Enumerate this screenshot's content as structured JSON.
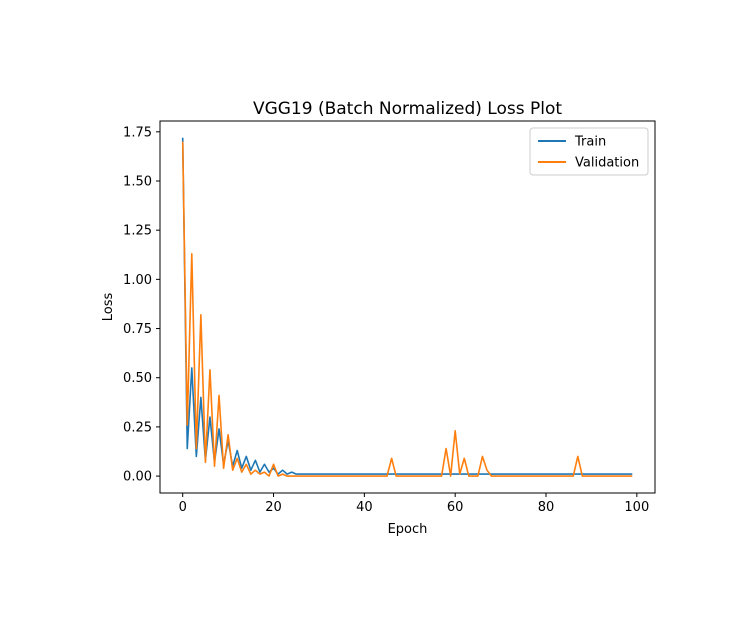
{
  "chart_data": {
    "type": "line",
    "title": "VGG19 (Batch Normalized) Loss Plot",
    "xlabel": "Epoch",
    "ylabel": "Loss",
    "xlim": [
      -5,
      104
    ],
    "ylim": [
      -0.086,
      1.805
    ],
    "xticks": [
      0,
      20,
      40,
      60,
      80,
      100
    ],
    "xtick_labels": [
      "0",
      "20",
      "40",
      "60",
      "80",
      "100"
    ],
    "yticks": [
      0,
      0.25,
      0.5,
      0.75,
      1.0,
      1.25,
      1.5,
      1.75
    ],
    "ytick_labels": [
      "0.00",
      "0.25",
      "0.50",
      "0.75",
      "1.00",
      "1.25",
      "1.50",
      "1.75"
    ],
    "grid": false,
    "legend_position": "top-right",
    "series": [
      {
        "name": "Train",
        "color": "#1f77b4",
        "x": [
          0,
          1,
          2,
          3,
          4,
          5,
          6,
          7,
          8,
          9,
          10,
          11,
          12,
          13,
          14,
          15,
          16,
          17,
          18,
          19,
          20,
          21,
          22,
          23,
          24,
          25,
          26,
          27,
          28,
          29,
          30,
          31,
          32,
          33,
          34,
          35,
          36,
          37,
          38,
          39,
          40,
          41,
          42,
          43,
          44,
          45,
          46,
          47,
          48,
          49,
          50,
          51,
          52,
          53,
          54,
          55,
          56,
          57,
          58,
          59,
          60,
          61,
          62,
          63,
          64,
          65,
          66,
          67,
          68,
          69,
          70,
          71,
          72,
          73,
          74,
          75,
          76,
          77,
          78,
          79,
          80,
          81,
          82,
          83,
          84,
          85,
          86,
          87,
          88,
          89,
          90,
          91,
          92,
          93,
          94,
          95,
          96,
          97,
          98,
          99
        ],
        "values": [
          1.72,
          0.14,
          0.55,
          0.1,
          0.4,
          0.08,
          0.3,
          0.07,
          0.24,
          0.06,
          0.18,
          0.05,
          0.13,
          0.04,
          0.1,
          0.03,
          0.08,
          0.02,
          0.06,
          0.02,
          0.04,
          0.01,
          0.03,
          0.01,
          0.02,
          0.01,
          0.01,
          0.01,
          0.01,
          0.01,
          0.01,
          0.01,
          0.01,
          0.01,
          0.01,
          0.01,
          0.01,
          0.01,
          0.01,
          0.01,
          0.01,
          0.01,
          0.01,
          0.01,
          0.01,
          0.01,
          0.01,
          0.01,
          0.01,
          0.01,
          0.01,
          0.01,
          0.01,
          0.01,
          0.01,
          0.01,
          0.01,
          0.01,
          0.01,
          0.01,
          0.01,
          0.01,
          0.01,
          0.01,
          0.01,
          0.01,
          0.01,
          0.01,
          0.01,
          0.01,
          0.01,
          0.01,
          0.01,
          0.01,
          0.01,
          0.01,
          0.01,
          0.01,
          0.01,
          0.01,
          0.01,
          0.01,
          0.01,
          0.01,
          0.01,
          0.01,
          0.01,
          0.01,
          0.01,
          0.01,
          0.01,
          0.01,
          0.01,
          0.01,
          0.01,
          0.01,
          0.01,
          0.01,
          0.01,
          0.01
        ]
      },
      {
        "name": "Validation",
        "color": "#ff7f0e",
        "x": [
          0,
          1,
          2,
          3,
          4,
          5,
          6,
          7,
          8,
          9,
          10,
          11,
          12,
          13,
          14,
          15,
          16,
          17,
          18,
          19,
          20,
          21,
          22,
          23,
          24,
          25,
          26,
          27,
          28,
          29,
          30,
          31,
          32,
          33,
          34,
          35,
          36,
          37,
          38,
          39,
          40,
          41,
          42,
          43,
          44,
          45,
          46,
          47,
          48,
          49,
          50,
          51,
          52,
          53,
          54,
          55,
          56,
          57,
          58,
          59,
          60,
          61,
          62,
          63,
          64,
          65,
          66,
          67,
          68,
          69,
          70,
          71,
          72,
          73,
          74,
          75,
          76,
          77,
          78,
          79,
          80,
          81,
          82,
          83,
          84,
          85,
          86,
          87,
          88,
          89,
          90,
          91,
          92,
          93,
          94,
          95,
          96,
          97,
          98,
          99
        ],
        "values": [
          1.7,
          0.26,
          1.13,
          0.14,
          0.82,
          0.07,
          0.54,
          0.05,
          0.41,
          0.04,
          0.21,
          0.03,
          0.09,
          0.02,
          0.06,
          0.01,
          0.03,
          0.01,
          0.02,
          0.0,
          0.06,
          0.0,
          0.01,
          0.0,
          0.0,
          0.0,
          0.0,
          0.0,
          0.0,
          0.0,
          0.0,
          0.0,
          0.0,
          0.0,
          0.0,
          0.0,
          0.0,
          0.0,
          0.0,
          0.0,
          0.0,
          0.0,
          0.0,
          0.0,
          0.0,
          0.0,
          0.09,
          0.0,
          0.0,
          0.0,
          0.0,
          0.0,
          0.0,
          0.0,
          0.0,
          0.0,
          0.0,
          0.0,
          0.14,
          0.0,
          0.23,
          0.01,
          0.09,
          0.0,
          0.0,
          0.0,
          0.1,
          0.03,
          0.0,
          0.0,
          0.0,
          0.0,
          0.0,
          0.0,
          0.0,
          0.0,
          0.0,
          0.0,
          0.0,
          0.0,
          0.0,
          0.0,
          0.0,
          0.0,
          0.0,
          0.0,
          0.0,
          0.1,
          0.0,
          0.0,
          0.0,
          0.0,
          0.0,
          0.0,
          0.0,
          0.0,
          0.0,
          0.0,
          0.0,
          0.0
        ]
      }
    ]
  }
}
